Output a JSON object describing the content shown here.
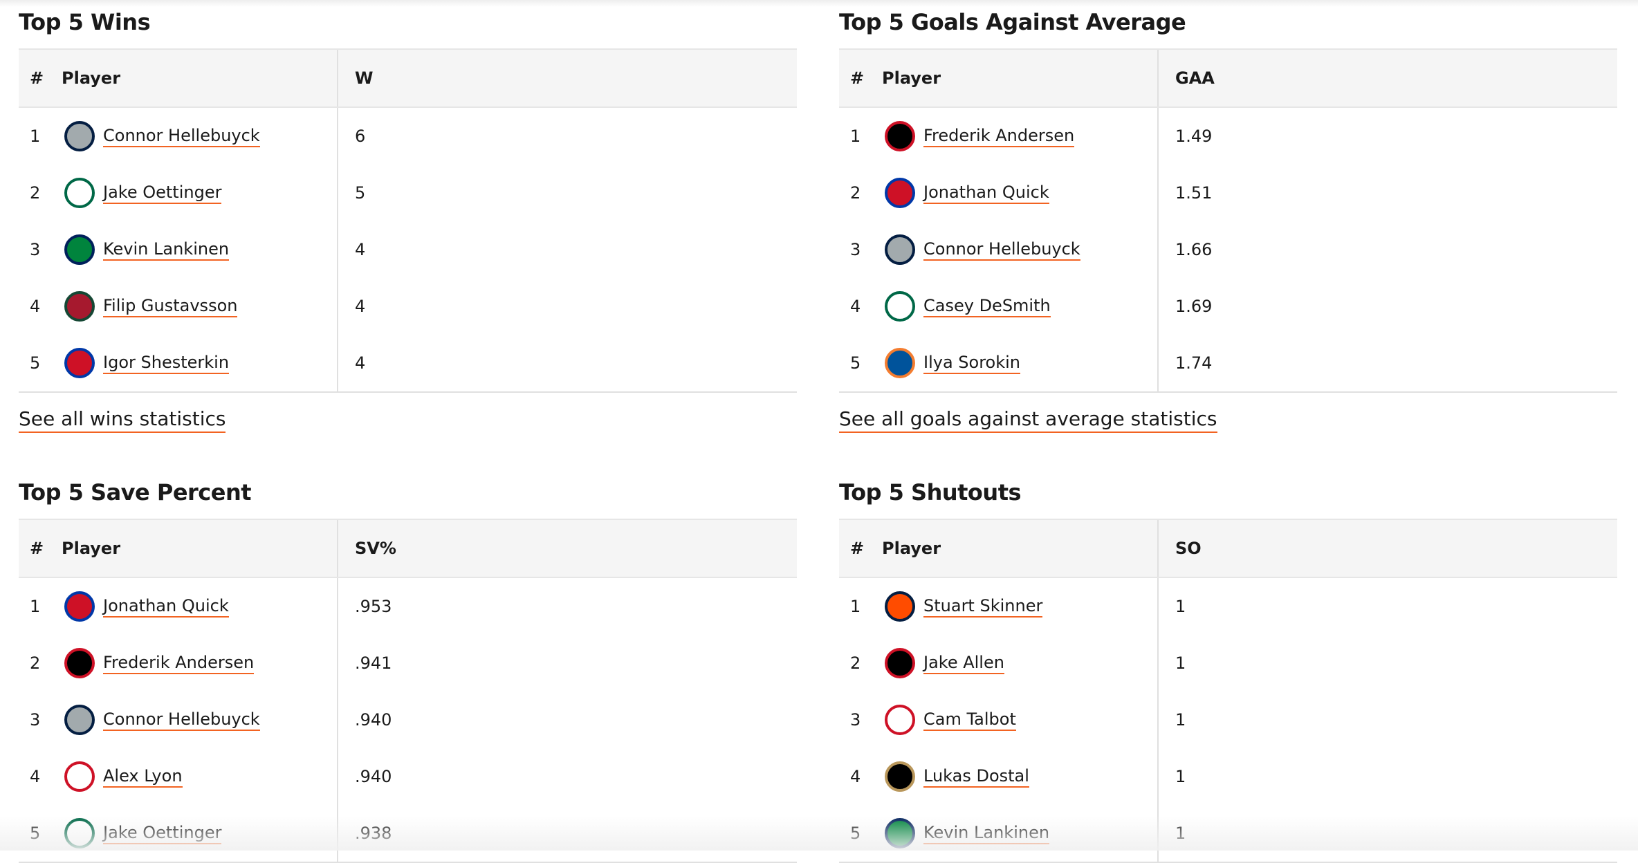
{
  "sections": [
    {
      "title": "Top 5 Wins",
      "columns": [
        "#",
        "Player",
        "W"
      ],
      "rows": [
        [
          "1",
          "Connor Hellebuyck",
          "6"
        ],
        [
          "2",
          "Jake Oettinger",
          "5"
        ],
        [
          "3",
          "Kevin Lankinen",
          "4"
        ],
        [
          "4",
          "Filip Gustavsson",
          "4"
        ],
        [
          "5",
          "Igor Shesterkin",
          "4"
        ]
      ],
      "link": "See all wins statistics"
    },
    {
      "title": "Top 5 Goals Against Average",
      "columns": [
        "#",
        "Player",
        "GAA"
      ],
      "rows": [
        [
          "1",
          "Frederik Andersen",
          "1.49"
        ],
        [
          "2",
          "Jonathan Quick",
          "1.51"
        ],
        [
          "3",
          "Connor Hellebuyck",
          "1.66"
        ],
        [
          "4",
          "Casey DeSmith",
          "1.69"
        ],
        [
          "5",
          "Ilya Sorokin",
          "1.74"
        ]
      ],
      "link": "See all goals against average statistics"
    },
    {
      "title": "Top 5 Save Percent",
      "columns": [
        "#",
        "Player",
        "SV%"
      ],
      "rows": [
        [
          "1",
          "Jonathan Quick",
          ".953"
        ],
        [
          "2",
          "Frederik Andersen",
          ".941"
        ],
        [
          "3",
          "Connor Hellebuyck",
          ".940"
        ],
        [
          "4",
          "Alex Lyon",
          ".940"
        ],
        [
          "5",
          "Jake Oettinger",
          ".938"
        ]
      ]
    },
    {
      "title": "Top 5 Shutouts",
      "columns": [
        "#",
        "Player",
        "SO"
      ],
      "rows": [
        [
          "1",
          "Stuart Skinner",
          "1"
        ],
        [
          "2",
          "Jake Allen",
          "1"
        ],
        [
          "3",
          "Cam Talbot",
          "1"
        ],
        [
          "4",
          "Lukas Dostal",
          "1"
        ],
        [
          "5",
          "Kevin Lankinen",
          "1"
        ]
      ]
    }
  ]
}
